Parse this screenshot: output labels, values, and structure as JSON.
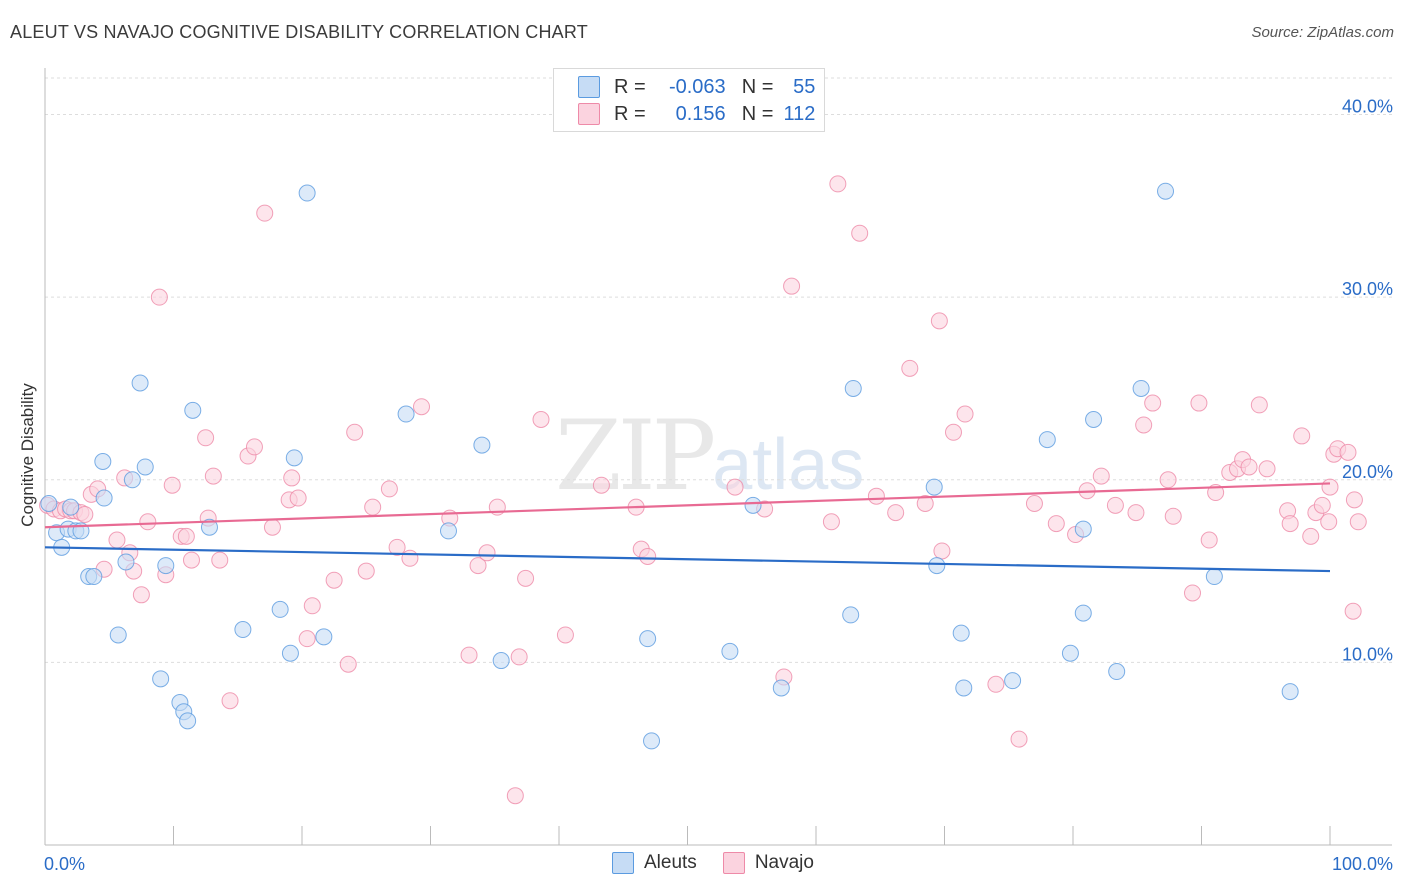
{
  "header": {
    "title": "ALEUT VS NAVAJO COGNITIVE DISABILITY CORRELATION CHART",
    "source": "Source: ZipAtlas.com"
  },
  "watermark": {
    "zip": "ZIP",
    "atlas": "atlas"
  },
  "legend_box": {
    "rows": [
      {
        "r_label": "R = ",
        "r_value": "-0.063",
        "n_label": "N = ",
        "n_value": "55",
        "color": "#a9c9f0"
      },
      {
        "r_label": "R = ",
        "r_value": "0.156",
        "n_label": "N = ",
        "n_value": "112",
        "color": "#f7b8ca"
      }
    ]
  },
  "bottom_legend": {
    "aleuts": "Aleuts",
    "navajo": "Navajo"
  },
  "chart_data": {
    "type": "scatter",
    "title": "ALEUT VS NAVAJO COGNITIVE DISABILITY CORRELATION CHART",
    "xlabel": "",
    "ylabel": "Cognitive Disability",
    "xlim": [
      0,
      100
    ],
    "ylim": [
      0,
      42
    ],
    "x_tick_labels": [
      "0.0%",
      "100.0%"
    ],
    "y_ticks": [
      10,
      20,
      30,
      40
    ],
    "y_tick_labels": [
      "10.0%",
      "20.0%",
      "30.0%",
      "40.0%"
    ],
    "grid": true,
    "colors": {
      "aleuts": "#5b9be0",
      "aleuts_fill": "#c6dcf5",
      "navajo": "#ee8aa8",
      "navajo_fill": "#fbd3df",
      "aleuts_line": "#2a6cc7",
      "navajo_line": "#e86a93"
    },
    "series": [
      {
        "name": "Aleuts",
        "trend": {
          "x": [
            0,
            100
          ],
          "y": [
            16.3,
            15.0
          ]
        },
        "points": [
          [
            0.3,
            18.7
          ],
          [
            0.9,
            17.1
          ],
          [
            1.3,
            16.3
          ],
          [
            1.8,
            17.3
          ],
          [
            2.0,
            18.5
          ],
          [
            2.4,
            17.2
          ],
          [
            2.8,
            17.2
          ],
          [
            3.4,
            14.7
          ],
          [
            3.8,
            14.7
          ],
          [
            4.5,
            21.0
          ],
          [
            4.6,
            19.0
          ],
          [
            5.7,
            11.5
          ],
          [
            6.3,
            15.5
          ],
          [
            6.8,
            20.0
          ],
          [
            7.4,
            25.3
          ],
          [
            7.8,
            20.7
          ],
          [
            9.0,
            9.1
          ],
          [
            9.4,
            15.3
          ],
          [
            10.5,
            7.8
          ],
          [
            10.8,
            7.3
          ],
          [
            11.1,
            6.8
          ],
          [
            11.5,
            23.8
          ],
          [
            12.8,
            17.4
          ],
          [
            15.4,
            11.8
          ],
          [
            18.3,
            12.9
          ],
          [
            19.1,
            10.5
          ],
          [
            19.4,
            21.2
          ],
          [
            20.4,
            35.7
          ],
          [
            21.7,
            11.4
          ],
          [
            28.1,
            23.6
          ],
          [
            31.4,
            17.2
          ],
          [
            34.0,
            21.9
          ],
          [
            35.5,
            10.1
          ],
          [
            46.9,
            11.3
          ],
          [
            47.2,
            5.7
          ],
          [
            53.3,
            10.6
          ],
          [
            55.1,
            18.6
          ],
          [
            57.3,
            8.6
          ],
          [
            62.7,
            12.6
          ],
          [
            62.9,
            25.0
          ],
          [
            69.2,
            19.6
          ],
          [
            69.4,
            15.3
          ],
          [
            71.3,
            11.6
          ],
          [
            71.5,
            8.6
          ],
          [
            75.3,
            9.0
          ],
          [
            78.0,
            22.2
          ],
          [
            79.8,
            10.5
          ],
          [
            80.8,
            17.3
          ],
          [
            80.8,
            12.7
          ],
          [
            81.6,
            23.3
          ],
          [
            83.4,
            9.5
          ],
          [
            85.3,
            25.0
          ],
          [
            87.2,
            35.8
          ],
          [
            91.0,
            14.7
          ],
          [
            96.9,
            8.4
          ]
        ]
      },
      {
        "name": "Navajo",
        "trend": {
          "x": [
            0,
            100
          ],
          "y": [
            17.4,
            19.8
          ]
        },
        "points": [
          [
            0.2,
            18.6
          ],
          [
            0.7,
            18.4
          ],
          [
            1.2,
            18.3
          ],
          [
            1.6,
            18.4
          ],
          [
            2.0,
            18.3
          ],
          [
            2.3,
            18.3
          ],
          [
            2.8,
            18.2
          ],
          [
            3.1,
            18.1
          ],
          [
            3.6,
            19.2
          ],
          [
            4.1,
            19.5
          ],
          [
            4.6,
            15.1
          ],
          [
            5.6,
            16.7
          ],
          [
            6.2,
            20.1
          ],
          [
            6.6,
            16.0
          ],
          [
            6.9,
            15.0
          ],
          [
            7.5,
            13.7
          ],
          [
            8.0,
            17.7
          ],
          [
            8.9,
            30.0
          ],
          [
            9.4,
            14.8
          ],
          [
            9.9,
            19.7
          ],
          [
            10.6,
            16.9
          ],
          [
            11.0,
            16.9
          ],
          [
            11.4,
            15.6
          ],
          [
            12.5,
            22.3
          ],
          [
            12.7,
            17.9
          ],
          [
            13.1,
            20.2
          ],
          [
            13.6,
            15.6
          ],
          [
            14.4,
            7.9
          ],
          [
            15.8,
            21.3
          ],
          [
            16.3,
            21.8
          ],
          [
            17.1,
            34.6
          ],
          [
            17.7,
            17.4
          ],
          [
            19.0,
            18.9
          ],
          [
            19.2,
            20.1
          ],
          [
            19.7,
            19.0
          ],
          [
            20.4,
            11.3
          ],
          [
            20.8,
            13.1
          ],
          [
            22.5,
            14.5
          ],
          [
            23.6,
            9.9
          ],
          [
            24.1,
            22.6
          ],
          [
            25.0,
            15.0
          ],
          [
            25.5,
            18.5
          ],
          [
            26.8,
            19.5
          ],
          [
            27.4,
            16.3
          ],
          [
            28.4,
            15.7
          ],
          [
            29.3,
            24.0
          ],
          [
            31.5,
            17.9
          ],
          [
            33.0,
            10.4
          ],
          [
            33.7,
            15.3
          ],
          [
            34.4,
            16.0
          ],
          [
            35.2,
            18.5
          ],
          [
            36.6,
            2.7
          ],
          [
            36.9,
            10.3
          ],
          [
            37.4,
            14.6
          ],
          [
            38.6,
            23.3
          ],
          [
            40.5,
            11.5
          ],
          [
            43.3,
            19.7
          ],
          [
            46.0,
            18.5
          ],
          [
            46.4,
            16.2
          ],
          [
            46.9,
            15.8
          ],
          [
            53.7,
            19.6
          ],
          [
            56.0,
            18.4
          ],
          [
            57.5,
            9.2
          ],
          [
            58.1,
            30.6
          ],
          [
            61.2,
            17.7
          ],
          [
            61.7,
            36.2
          ],
          [
            63.4,
            33.5
          ],
          [
            64.7,
            19.1
          ],
          [
            66.2,
            18.2
          ],
          [
            67.3,
            26.1
          ],
          [
            68.5,
            18.7
          ],
          [
            69.6,
            28.7
          ],
          [
            69.8,
            16.1
          ],
          [
            70.7,
            22.6
          ],
          [
            71.6,
            23.6
          ],
          [
            74.0,
            8.8
          ],
          [
            75.8,
            5.8
          ],
          [
            77.0,
            18.7
          ],
          [
            78.7,
            17.6
          ],
          [
            80.2,
            17.0
          ],
          [
            81.1,
            19.4
          ],
          [
            82.2,
            20.2
          ],
          [
            83.3,
            18.6
          ],
          [
            84.9,
            18.2
          ],
          [
            85.5,
            23.0
          ],
          [
            86.2,
            24.2
          ],
          [
            87.4,
            20.0
          ],
          [
            87.8,
            18.0
          ],
          [
            89.3,
            13.8
          ],
          [
            89.8,
            24.2
          ],
          [
            90.6,
            16.7
          ],
          [
            91.1,
            19.3
          ],
          [
            92.2,
            20.4
          ],
          [
            92.8,
            20.6
          ],
          [
            93.2,
            21.1
          ],
          [
            93.7,
            20.7
          ],
          [
            94.5,
            24.1
          ],
          [
            95.1,
            20.6
          ],
          [
            96.7,
            18.3
          ],
          [
            96.9,
            17.6
          ],
          [
            97.8,
            22.4
          ],
          [
            98.5,
            16.9
          ],
          [
            98.9,
            18.2
          ],
          [
            99.4,
            18.6
          ],
          [
            99.9,
            17.7
          ],
          [
            100.0,
            19.6
          ],
          [
            100.3,
            21.4
          ],
          [
            100.6,
            21.7
          ],
          [
            101.4,
            21.5
          ],
          [
            101.9,
            18.9
          ],
          [
            101.8,
            12.8
          ],
          [
            102.2,
            17.7
          ]
        ]
      }
    ]
  }
}
